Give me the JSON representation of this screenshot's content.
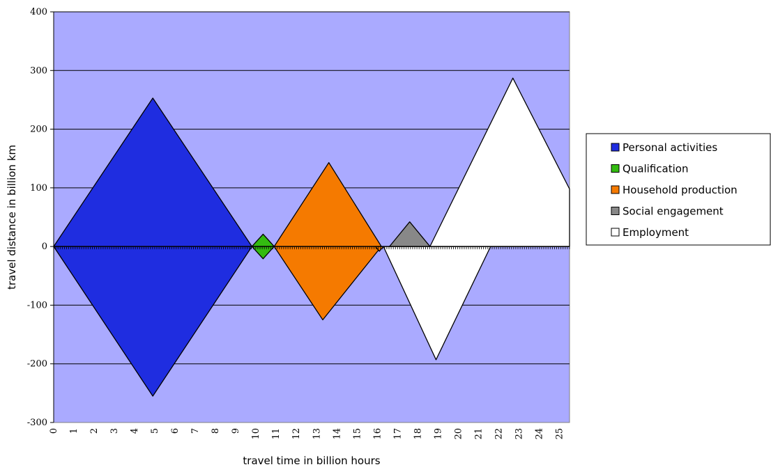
{
  "chart_data": {
    "type": "area",
    "xlabel": "travel time in billion hours",
    "ylabel": "travel distance in billion km",
    "xlim": [
      0,
      25.5
    ],
    "ylim": [
      -300,
      400
    ],
    "y_ticks": [
      400,
      300,
      200,
      100,
      0,
      -100,
      -200,
      -300
    ],
    "y_tick_labels": [
      "400",
      "300",
      "200",
      "100",
      "0",
      "-100",
      "-200",
      "-300"
    ],
    "x_tick_labels": [
      "0",
      "1",
      "2",
      "3",
      "4",
      "5",
      "6",
      "7",
      "8",
      "9",
      "10",
      "11",
      "12",
      "13",
      "14",
      "15",
      "16",
      "17",
      "18",
      "19",
      "20",
      "21",
      "22",
      "23",
      "24",
      "25"
    ],
    "grid": "horizontal",
    "plot_background": "#aaaaff",
    "legend_position": "right",
    "series": [
      {
        "name": "Personal activities",
        "color": "#1f2de0",
        "polygons": [
          [
            [
              0,
              0
            ],
            [
              4.9,
              253
            ],
            [
              9.8,
              0
            ],
            [
              4.9,
              -255
            ]
          ]
        ]
      },
      {
        "name": "Qualification",
        "color": "#33bb11",
        "polygons": [
          [
            [
              9.8,
              0
            ],
            [
              10.35,
              21
            ],
            [
              10.9,
              0
            ],
            [
              10.35,
              -21
            ]
          ]
        ]
      },
      {
        "name": "Household production",
        "color": "#f57a00",
        "polygons": [
          [
            [
              10.9,
              0
            ],
            [
              13.6,
              143
            ],
            [
              16.2,
              0
            ],
            [
              13.3,
              -125
            ]
          ],
          [
            [
              15.9,
              0
            ],
            [
              16.3,
              0
            ],
            [
              16.1,
              -8
            ]
          ]
        ]
      },
      {
        "name": "Social engagement",
        "color": "#888888",
        "polygons": [
          [
            [
              16.6,
              0
            ],
            [
              17.6,
              42
            ],
            [
              18.6,
              0
            ]
          ]
        ]
      },
      {
        "name": "Employment",
        "color": "#ffffff",
        "polygons": [
          [
            [
              18.6,
              0
            ],
            [
              22.7,
              287
            ],
            [
              25.5,
              98
            ],
            [
              25.5,
              0
            ]
          ],
          [
            [
              16.3,
              0
            ],
            [
              21.6,
              0
            ],
            [
              18.9,
              -193
            ]
          ]
        ]
      }
    ]
  }
}
